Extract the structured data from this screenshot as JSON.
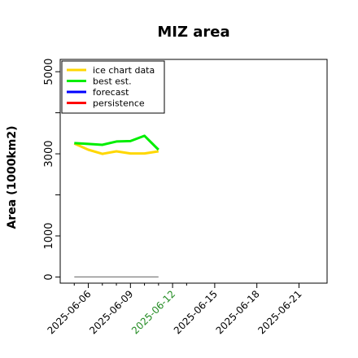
{
  "chart_data": {
    "type": "line",
    "title": "MIZ area",
    "xlabel": "",
    "ylabel": "Area (1000km2)",
    "ylim": [
      -150,
      5300
    ],
    "xlim": [
      "2025-06-04",
      "2025-06-23"
    ],
    "y_ticks": [
      0,
      1000,
      3000,
      5000
    ],
    "y_tick_labels": [
      "0",
      "1000",
      "3000",
      "5000"
    ],
    "y_minor_ticks": [
      2000,
      4000
    ],
    "x_ticks": [
      "2025-06-06",
      "2025-06-09",
      "2025-06-12",
      "2025-06-15",
      "2025-06-18",
      "2025-06-21"
    ],
    "x_tick_labels": [
      "2025-06-06",
      "2025-06-09",
      "2025-06-12",
      "2025-06-15",
      "2025-06-18",
      "2025-06-21"
    ],
    "x_tick_colors": [
      "#000000",
      "#000000",
      "#228B22",
      "#000000",
      "#000000",
      "#000000"
    ],
    "x_minor_ticks": [
      "2025-06-05",
      "2025-06-07",
      "2025-06-08",
      "2025-06-10",
      "2025-06-11",
      "2025-06-13"
    ],
    "grid": false,
    "legend_position": "top-left",
    "series": [
      {
        "name": "ice chart data",
        "color": "#FFD700",
        "x": [
          "2025-06-05",
          "2025-06-06",
          "2025-06-07",
          "2025-06-08",
          "2025-06-09",
          "2025-06-10",
          "2025-06-11"
        ],
        "values": [
          3250,
          3100,
          3000,
          3060,
          3010,
          3010,
          3060
        ]
      },
      {
        "name": "best est.",
        "color": "#00EE00",
        "x": [
          "2025-06-05",
          "2025-06-06",
          "2025-06-07",
          "2025-06-08",
          "2025-06-09",
          "2025-06-10",
          "2025-06-11"
        ],
        "values": [
          3260,
          3240,
          3220,
          3300,
          3310,
          3440,
          3100
        ]
      },
      {
        "name": "forecast",
        "color": "#0000FF",
        "x": [],
        "values": []
      },
      {
        "name": "persistence",
        "color": "#FF0000",
        "x": [],
        "values": []
      },
      {
        "name": "",
        "color": "#808080",
        "x": [
          "2025-06-05",
          "2025-06-11"
        ],
        "values": [
          0,
          0
        ]
      }
    ]
  }
}
